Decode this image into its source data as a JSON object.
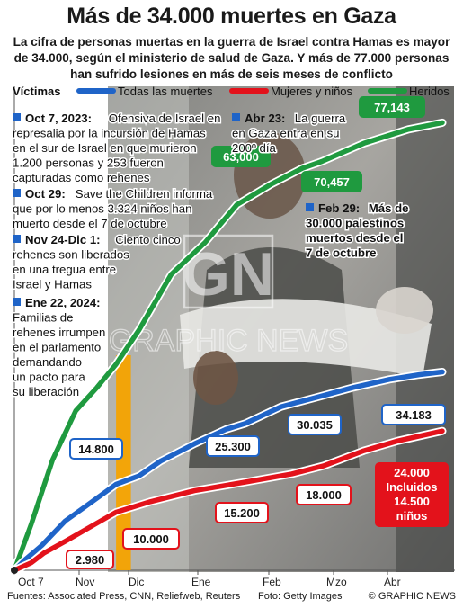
{
  "title": "Más de 34.000 muertes en Gaza",
  "subtitle": "La cifra de personas muertas en la guerra de Israel contra Hamas es mayor de 34.000, según el ministerio de salud de Gaza. Y más de 77.000 personas han sufrido lesiones en más de seis meses de conflicto",
  "watermark": {
    "logo": "GN",
    "text": "GRAPHIC NEWS"
  },
  "footer": {
    "sources": "Fuentes: Associated Press, CNN, Reliefweb, Reuters",
    "photo": "Foto: Getty Images",
    "copyright": "© GRAPHIC NEWS"
  },
  "colors": {
    "total": "#1f64c8",
    "women_children": "#e3121b",
    "injured": "#1f9a3f",
    "event_marker": "#1f64c8",
    "highlight_band": "#f5a300"
  },
  "events": [
    {
      "date": "Oct 7, 2023:",
      "text": "Ofensiva de Israel en represalia por la incursión de Hamas en el sur de Israel en que murieron 1.200 personas y 253 fueron capturadas como rehenes"
    },
    {
      "date": "Oct 29:",
      "text": "Save the Children informa que por lo menos 3.324 niños han muerto desde el 7 de octubre"
    },
    {
      "date": "Nov 24-Dic 1:",
      "text": "Ciento cinco rehenes son liberados en una tregua entre Israel y Hamas"
    },
    {
      "date": "Ene 22, 2024:",
      "text": "Familias de rehenes irrumpen en el parlamento demandando un pacto para su liberación"
    },
    {
      "date": "Abr 23:",
      "text": "La guerra en Gaza entra en su 200º día"
    },
    {
      "date": "Feb 29:",
      "text": "Más de 30.000 palestinos muertos desde el 7 de octubre"
    }
  ],
  "chart_data": {
    "type": "line",
    "legend_title": "Víctimas",
    "legend_placement": "top",
    "x_tick_labels": [
      "Oct 7",
      "Nov",
      "Dic",
      "Ene",
      "Feb",
      "Mzo",
      "Abr"
    ],
    "x_range": [
      "2023-10-07",
      "2024-04-26"
    ],
    "y_range": [
      0,
      80000
    ],
    "highlight_period": {
      "label": "Nov 24-Dic 1",
      "start": "2023-11-24",
      "end": "2023-12-01"
    },
    "series": [
      {
        "name": "Todas las muertes",
        "key": "total",
        "points": [
          [
            "2023-10-07",
            0
          ],
          [
            "2023-10-12",
            1800
          ],
          [
            "2023-10-20",
            4300
          ],
          [
            "2023-10-31",
            8500
          ],
          [
            "2023-11-10",
            11100
          ],
          [
            "2023-11-24",
            14800
          ],
          [
            "2023-12-05",
            16300
          ],
          [
            "2023-12-15",
            18800
          ],
          [
            "2023-12-31",
            21800
          ],
          [
            "2024-01-15",
            24300
          ],
          [
            "2024-01-24",
            25300
          ],
          [
            "2024-02-10",
            28200
          ],
          [
            "2024-02-29",
            30035
          ],
          [
            "2024-03-15",
            31500
          ],
          [
            "2024-04-01",
            32900
          ],
          [
            "2024-04-15",
            33700
          ],
          [
            "2024-04-26",
            34183
          ]
        ],
        "labels": [
          {
            "date": "2023-11-24",
            "value": 14800,
            "text": "14.800"
          },
          {
            "date": "2024-01-24",
            "value": 25300,
            "text": "25.300"
          },
          {
            "date": "2024-02-29",
            "value": 30035,
            "text": "30.035"
          },
          {
            "date": "2024-04-26",
            "value": 34183,
            "text": "34.183"
          }
        ]
      },
      {
        "name": "Mujeres y niños",
        "key": "women_children",
        "points": [
          [
            "2023-10-07",
            0
          ],
          [
            "2023-10-15",
            1300
          ],
          [
            "2023-10-21",
            2980
          ],
          [
            "2023-10-31",
            5000
          ],
          [
            "2023-11-12",
            7500
          ],
          [
            "2023-11-24",
            10000
          ],
          [
            "2023-12-10",
            11800
          ],
          [
            "2023-12-31",
            13700
          ],
          [
            "2024-01-24",
            15200
          ],
          [
            "2024-02-15",
            16600
          ],
          [
            "2024-03-01",
            18000
          ],
          [
            "2024-03-20",
            20600
          ],
          [
            "2024-04-05",
            22300
          ],
          [
            "2024-04-26",
            24000
          ]
        ],
        "labels": [
          {
            "date": "2023-10-21",
            "value": 2980,
            "text": "2.980"
          },
          {
            "date": "2023-11-24",
            "value": 10000,
            "text": "10.000"
          },
          {
            "date": "2024-01-24",
            "value": 15200,
            "text": "15.200"
          },
          {
            "date": "2024-03-01",
            "value": 18000,
            "text": "18.000"
          },
          {
            "date": "2024-04-26",
            "value": 24000,
            "text": "24.000 Incluidos 14.500 niños"
          }
        ]
      },
      {
        "name": "Heridos",
        "key": "injured",
        "points": [
          [
            "2023-10-07",
            0
          ],
          [
            "2023-10-15",
            8000
          ],
          [
            "2023-10-25",
            19000
          ],
          [
            "2023-11-05",
            27500
          ],
          [
            "2023-11-15",
            31500
          ],
          [
            "2023-11-24",
            35500
          ],
          [
            "2023-12-05",
            41500
          ],
          [
            "2023-12-20",
            51000
          ],
          [
            "2024-01-05",
            56500
          ],
          [
            "2024-01-20",
            63000
          ],
          [
            "2024-02-05",
            66500
          ],
          [
            "2024-02-20",
            69300
          ],
          [
            "2024-02-29",
            70457
          ],
          [
            "2024-03-20",
            73600
          ],
          [
            "2024-04-10",
            76000
          ],
          [
            "2024-04-26",
            77143
          ]
        ],
        "labels": [
          {
            "date": "2024-01-20",
            "value": 63000,
            "text": "63,000"
          },
          {
            "date": "2024-02-29",
            "value": 70457,
            "text": "70,457"
          },
          {
            "date": "2024-04-26",
            "value": 77143,
            "text": "77,143"
          }
        ]
      }
    ]
  }
}
